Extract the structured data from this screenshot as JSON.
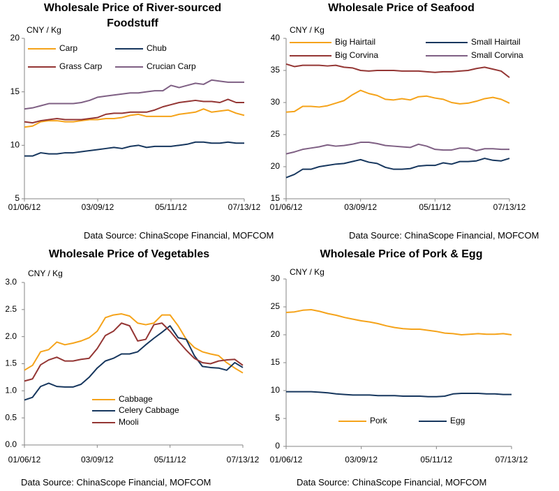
{
  "chart_data": [
    {
      "type": "line",
      "title": "Wholesale Price of River-sourced Foodstuff",
      "y_label": "CNY / Kg",
      "categories": [
        "01/06/12",
        null,
        null,
        null,
        null,
        null,
        null,
        null,
        null,
        "03/09/12",
        null,
        null,
        null,
        null,
        null,
        null,
        null,
        null,
        "05/11/12",
        null,
        null,
        null,
        null,
        null,
        null,
        null,
        null,
        "07/13/12"
      ],
      "series": [
        {
          "name": "Carp",
          "color": "#f5a31a",
          "values": [
            11.7,
            11.8,
            12.2,
            12.3,
            12.3,
            12.2,
            12.2,
            12.3,
            12.4,
            12.4,
            12.5,
            12.5,
            12.6,
            12.8,
            12.9,
            12.7,
            12.7,
            12.7,
            12.7,
            12.9,
            13.0,
            13.1,
            13.4,
            13.1,
            13.2,
            13.3,
            13.0,
            12.8
          ]
        },
        {
          "name": "Chub",
          "color": "#17375e",
          "values": [
            9.0,
            9.0,
            9.3,
            9.2,
            9.2,
            9.3,
            9.3,
            9.4,
            9.5,
            9.6,
            9.7,
            9.8,
            9.7,
            9.9,
            10.0,
            9.8,
            9.9,
            9.9,
            9.9,
            10.0,
            10.1,
            10.3,
            10.3,
            10.2,
            10.2,
            10.3,
            10.2,
            10.2
          ]
        },
        {
          "name": "Grass Carp",
          "color": "#943634",
          "values": [
            12.2,
            12.1,
            12.3,
            12.4,
            12.5,
            12.4,
            12.4,
            12.4,
            12.5,
            12.6,
            12.9,
            13.0,
            13.0,
            13.1,
            13.1,
            13.1,
            13.3,
            13.6,
            13.8,
            14.0,
            14.1,
            14.2,
            14.1,
            14.1,
            14.0,
            14.3,
            14.0,
            14.0
          ]
        },
        {
          "name": "Crucian Carp",
          "color": "#7f6084",
          "values": [
            13.4,
            13.5,
            13.7,
            13.9,
            13.9,
            13.9,
            13.9,
            14.0,
            14.2,
            14.5,
            14.6,
            14.7,
            14.8,
            14.9,
            14.9,
            15.0,
            15.1,
            15.1,
            15.6,
            15.4,
            15.6,
            15.8,
            15.7,
            16.1,
            16.0,
            15.9,
            15.9,
            15.9
          ]
        }
      ],
      "ylim": [
        5,
        20
      ],
      "yticks": [
        5,
        10,
        15,
        20
      ],
      "source": "Data Source: ChinaScope Financial,  MOFCOM"
    },
    {
      "type": "line",
      "title": "Wholesale Price of Seafood",
      "y_label": "CNY / Kg",
      "categories": [
        "01/06/12",
        null,
        null,
        null,
        null,
        null,
        null,
        null,
        null,
        "03/09/12",
        null,
        null,
        null,
        null,
        null,
        null,
        null,
        null,
        "05/11/12",
        null,
        null,
        null,
        null,
        null,
        null,
        null,
        null,
        "07/13/12"
      ],
      "series": [
        {
          "name": "Big Hairtail",
          "color": "#f5a31a",
          "values": [
            28.5,
            28.6,
            29.4,
            29.4,
            29.3,
            29.5,
            29.9,
            30.3,
            31.2,
            31.9,
            31.4,
            31.1,
            30.5,
            30.4,
            30.6,
            30.4,
            30.9,
            31.0,
            30.7,
            30.5,
            30.0,
            29.8,
            29.9,
            30.2,
            30.6,
            30.8,
            30.5,
            29.9
          ]
        },
        {
          "name": "Small Hairtail",
          "color": "#17375e",
          "values": [
            18.3,
            18.8,
            19.6,
            19.6,
            20.0,
            20.2,
            20.4,
            20.5,
            20.8,
            21.1,
            20.7,
            20.5,
            19.9,
            19.6,
            19.6,
            19.7,
            20.1,
            20.2,
            20.2,
            20.6,
            20.4,
            20.8,
            20.8,
            20.9,
            21.3,
            21.0,
            20.9,
            21.3
          ]
        },
        {
          "name": "Big Corvina",
          "color": "#943634",
          "values": [
            36.0,
            35.6,
            35.8,
            35.8,
            35.8,
            35.7,
            35.8,
            35.5,
            35.4,
            35.0,
            34.9,
            35.0,
            35.0,
            35.0,
            34.9,
            34.9,
            34.9,
            34.8,
            34.7,
            34.8,
            34.8,
            34.9,
            35.0,
            35.3,
            35.5,
            35.2,
            34.9,
            33.9
          ]
        },
        {
          "name": "Small Corvina",
          "color": "#7f6084",
          "values": [
            22.0,
            22.3,
            22.7,
            22.9,
            23.1,
            23.4,
            23.2,
            23.3,
            23.5,
            23.8,
            23.8,
            23.6,
            23.3,
            23.2,
            23.1,
            23.0,
            23.5,
            23.2,
            22.7,
            22.6,
            22.6,
            22.9,
            22.9,
            22.5,
            22.8,
            22.8,
            22.7,
            22.7
          ]
        }
      ],
      "ylim": [
        15,
        40
      ],
      "yticks": [
        15,
        20,
        25,
        30,
        35,
        40
      ],
      "source": "Data Source: ChinaScope Financial,  MOFCOM"
    },
    {
      "type": "line",
      "title": "Wholesale Price of Vegetables",
      "y_label": "CNY / Kg",
      "categories": [
        "01/06/12",
        null,
        null,
        null,
        null,
        null,
        null,
        null,
        null,
        "03/09/12",
        null,
        null,
        null,
        null,
        null,
        null,
        null,
        null,
        "05/11/12",
        null,
        null,
        null,
        null,
        null,
        null,
        null,
        null,
        "07/13/12"
      ],
      "series": [
        {
          "name": "Cabbage",
          "color": "#f5a31a",
          "values": [
            1.38,
            1.47,
            1.72,
            1.76,
            1.9,
            1.85,
            1.88,
            1.92,
            1.98,
            2.1,
            2.35,
            2.4,
            2.42,
            2.38,
            2.25,
            2.22,
            2.25,
            2.4,
            2.4,
            2.2,
            1.95,
            1.8,
            1.72,
            1.68,
            1.65,
            1.52,
            1.42,
            1.33
          ]
        },
        {
          "name": "Celery Cabbage",
          "color": "#17375e",
          "values": [
            0.83,
            0.88,
            1.08,
            1.14,
            1.08,
            1.07,
            1.07,
            1.12,
            1.25,
            1.42,
            1.55,
            1.6,
            1.68,
            1.68,
            1.72,
            1.85,
            1.97,
            2.08,
            2.2,
            1.98,
            1.95,
            1.65,
            1.45,
            1.43,
            1.42,
            1.38,
            1.52,
            1.43
          ]
        },
        {
          "name": "Mooli",
          "color": "#943634",
          "values": [
            1.18,
            1.22,
            1.48,
            1.57,
            1.62,
            1.55,
            1.55,
            1.58,
            1.6,
            1.78,
            2.02,
            2.1,
            2.25,
            2.2,
            1.92,
            1.95,
            2.22,
            2.25,
            2.1,
            1.92,
            1.75,
            1.6,
            1.52,
            1.5,
            1.55,
            1.57,
            1.58,
            1.47
          ]
        }
      ],
      "ylim": [
        0,
        3
      ],
      "yticks": [
        {
          "value": 0,
          "label": "0.0"
        },
        0.5,
        {
          "value": 1,
          "label": "1.0"
        },
        1.5,
        {
          "value": 2,
          "label": "2.0"
        },
        2.5,
        {
          "value": 3,
          "label": "3.0"
        }
      ],
      "source": "Data Source: ChinaScope Financial,  MOFCOM"
    },
    {
      "type": "line",
      "title": "Wholesale Price of Pork & Egg",
      "y_label": "CNY / Kg",
      "categories": [
        "01/06/12",
        null,
        null,
        null,
        null,
        null,
        null,
        null,
        null,
        "03/09/12",
        null,
        null,
        null,
        null,
        null,
        null,
        null,
        null,
        "05/11/12",
        null,
        null,
        null,
        null,
        null,
        null,
        null,
        null,
        "07/13/12"
      ],
      "series": [
        {
          "name": "Pork",
          "color": "#f5a31a",
          "values": [
            24.0,
            24.1,
            24.4,
            24.5,
            24.2,
            23.8,
            23.5,
            23.1,
            22.8,
            22.5,
            22.3,
            22.0,
            21.6,
            21.3,
            21.1,
            21.0,
            21.0,
            20.8,
            20.6,
            20.3,
            20.2,
            20.0,
            20.1,
            20.2,
            20.1,
            20.1,
            20.2,
            20.0
          ]
        },
        {
          "name": "Egg",
          "color": "#17375e",
          "values": [
            9.8,
            9.8,
            9.8,
            9.8,
            9.7,
            9.6,
            9.4,
            9.3,
            9.2,
            9.2,
            9.2,
            9.1,
            9.1,
            9.1,
            9.0,
            9.0,
            9.0,
            8.9,
            8.9,
            9.0,
            9.4,
            9.5,
            9.5,
            9.5,
            9.4,
            9.4,
            9.3,
            9.3
          ]
        }
      ],
      "ylim": [
        0,
        30
      ],
      "yticks": [
        0,
        5,
        10,
        15,
        20,
        25,
        30
      ],
      "source": "Data Source: ChinaScope Financial,  MOFCOM"
    }
  ]
}
